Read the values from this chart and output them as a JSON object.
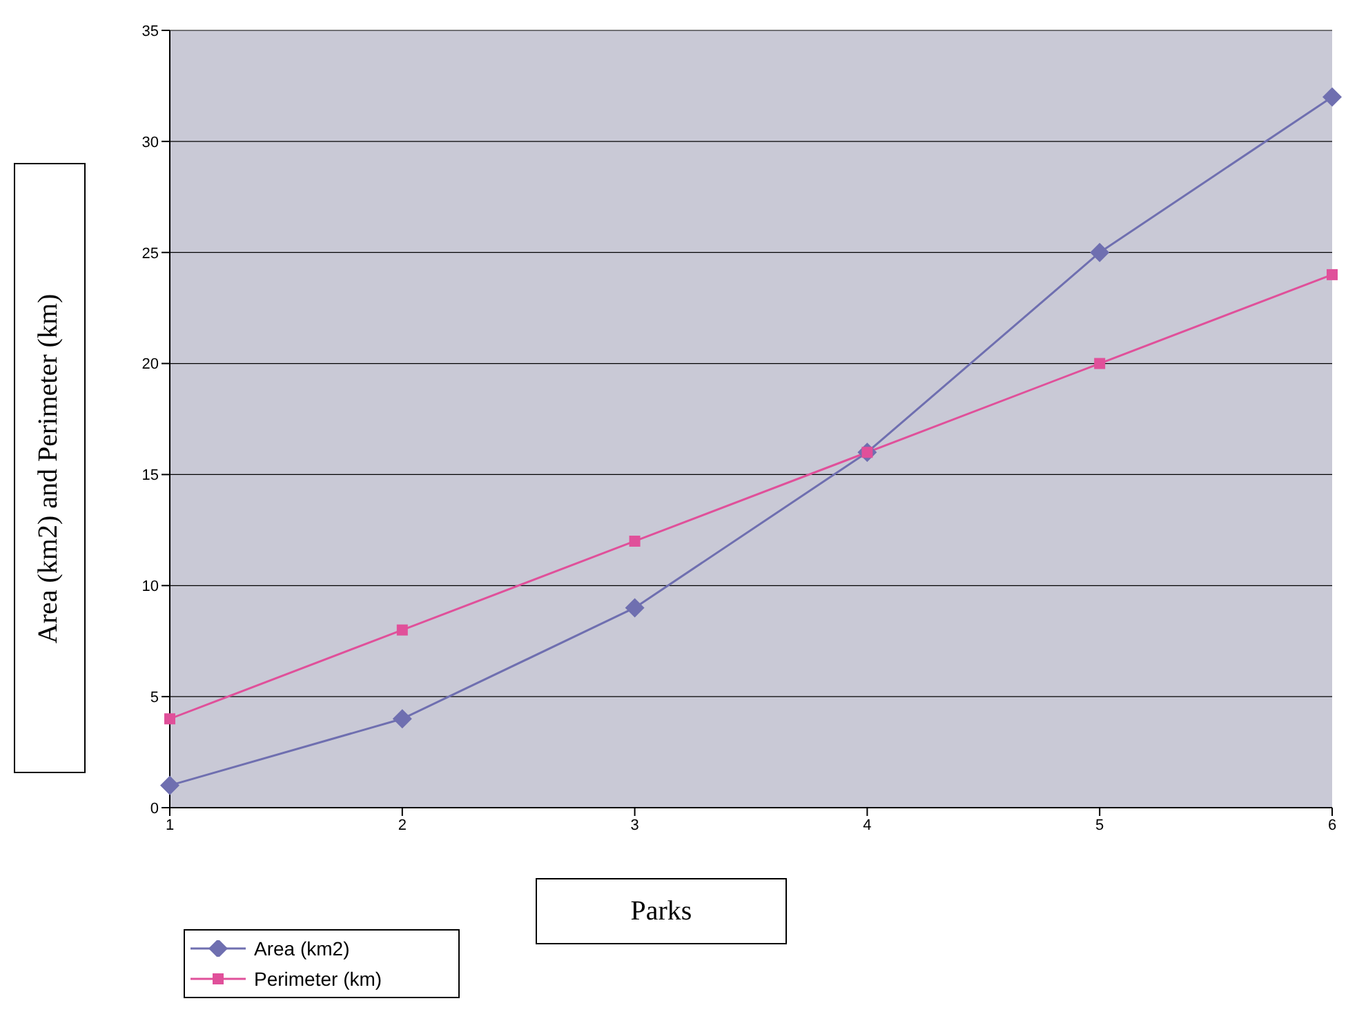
{
  "chart_data": {
    "type": "line",
    "xlabel": "Parks",
    "ylabel": "Area (km2) and Perimeter (km)",
    "categories": [
      "1",
      "2",
      "3",
      "4",
      "5",
      "6"
    ],
    "series": [
      {
        "name": "Area (km2)",
        "color": "#6f6fb0",
        "values": [
          1,
          4,
          9,
          16,
          25,
          32
        ],
        "marker": "diamond"
      },
      {
        "name": "Perimeter (km)",
        "color": "#e0509a",
        "values": [
          4,
          8,
          12,
          16,
          20,
          24
        ],
        "marker": "square"
      }
    ],
    "ylim": [
      0,
      35
    ],
    "yticks": [
      0,
      5,
      10,
      15,
      20,
      25,
      30,
      35
    ],
    "grid": "y",
    "legend": "bottom left"
  }
}
